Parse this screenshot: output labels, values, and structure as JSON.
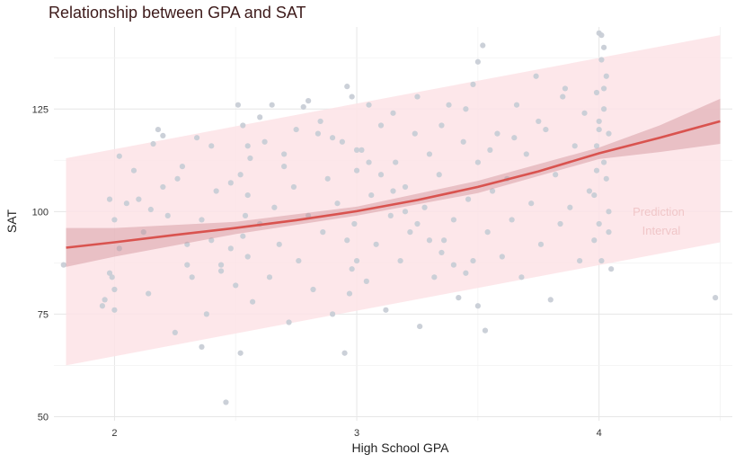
{
  "chart_data": {
    "type": "scatter",
    "title": "Relationship between GPA and SAT",
    "xlabel": "High School GPA",
    "ylabel": "SAT",
    "xlim": [
      1.75,
      4.55
    ],
    "ylim": [
      49,
      145
    ],
    "x_ticks": [
      2,
      3,
      4
    ],
    "y_ticks": [
      50,
      75,
      100,
      125
    ],
    "grid": true,
    "legend": "none",
    "annotation": "Prediction Interval",
    "annotation_lines": [
      "Prediction",
      "Interval"
    ],
    "fit_line": {
      "name": "",
      "x": [
        1.8,
        2.0,
        2.25,
        2.5,
        2.75,
        3.0,
        3.25,
        3.5,
        3.75,
        4.0,
        4.25,
        4.5
      ],
      "y": [
        91.2,
        92.5,
        94.3,
        96.0,
        97.9,
        100.1,
        102.8,
        106.0,
        109.8,
        114.2,
        118.0,
        122.0
      ]
    },
    "confidence_band": {
      "x": [
        1.8,
        2.0,
        2.5,
        3.0,
        3.5,
        4.0,
        4.25,
        4.5
      ],
      "lower": [
        86.5,
        89.0,
        94.5,
        99.0,
        104.5,
        112.8,
        114.5,
        116.5
      ],
      "upper": [
        96.0,
        96.0,
        97.5,
        101.2,
        107.5,
        115.6,
        121.0,
        127.5
      ]
    },
    "prediction_band": {
      "x": [
        1.8,
        4.5
      ],
      "lower": [
        62.5,
        92.5
      ],
      "upper": [
        113.0,
        143.0
      ]
    },
    "points": [
      [
        1.79,
        87
      ],
      [
        1.95,
        77
      ],
      [
        1.96,
        78.5
      ],
      [
        1.98,
        85
      ],
      [
        1.99,
        84
      ],
      [
        2.0,
        76
      ],
      [
        2.0,
        81
      ],
      [
        1.98,
        103
      ],
      [
        2.02,
        113.5
      ],
      [
        2.05,
        102
      ],
      [
        2.08,
        110
      ],
      [
        2.1,
        103
      ],
      [
        2.12,
        95
      ],
      [
        2.14,
        80
      ],
      [
        2.16,
        116.5
      ],
      [
        2.18,
        120
      ],
      [
        2.2,
        106
      ],
      [
        2.22,
        99
      ],
      [
        2.25,
        70.5
      ],
      [
        2.28,
        111
      ],
      [
        2.3,
        92
      ],
      [
        2.32,
        84
      ],
      [
        2.34,
        118
      ],
      [
        2.36,
        98
      ],
      [
        2.38,
        75
      ],
      [
        2.4,
        116
      ],
      [
        2.42,
        105
      ],
      [
        2.44,
        87
      ],
      [
        2.46,
        53.5
      ],
      [
        2.48,
        91
      ],
      [
        2.3,
        87
      ],
      [
        2.36,
        67
      ],
      [
        2.4,
        93
      ],
      [
        2.44,
        85.5
      ],
      [
        2.48,
        107
      ],
      [
        2.26,
        108
      ],
      [
        2.2,
        118.5
      ],
      [
        2.15,
        100.5
      ],
      [
        2.52,
        65.5
      ],
      [
        2.5,
        82
      ],
      [
        2.53,
        94
      ],
      [
        2.54,
        99
      ],
      [
        2.55,
        104
      ],
      [
        2.56,
        113
      ],
      [
        2.53,
        121
      ],
      [
        2.51,
        126
      ],
      [
        2.52,
        109
      ],
      [
        2.55,
        89
      ],
      [
        2.57,
        78
      ],
      [
        2.6,
        97
      ],
      [
        2.62,
        117
      ],
      [
        2.64,
        84
      ],
      [
        2.66,
        101
      ],
      [
        2.68,
        92
      ],
      [
        2.7,
        111
      ],
      [
        2.72,
        73
      ],
      [
        2.74,
        106
      ],
      [
        2.76,
        88
      ],
      [
        2.78,
        125.5
      ],
      [
        2.8,
        99
      ],
      [
        2.82,
        81
      ],
      [
        2.84,
        119
      ],
      [
        2.86,
        95
      ],
      [
        2.88,
        108
      ],
      [
        2.9,
        75
      ],
      [
        2.92,
        102
      ],
      [
        2.94,
        117
      ],
      [
        2.96,
        93
      ],
      [
        2.98,
        86
      ],
      [
        3.0,
        110
      ],
      [
        2.98,
        128
      ],
      [
        2.96,
        130.5
      ],
      [
        2.95,
        65.5
      ],
      [
        3.0,
        88
      ],
      [
        2.97,
        80
      ],
      [
        2.99,
        97
      ],
      [
        3.02,
        115
      ],
      [
        3.04,
        83
      ],
      [
        3.06,
        104
      ],
      [
        3.08,
        92
      ],
      [
        3.1,
        121
      ],
      [
        3.12,
        76
      ],
      [
        3.14,
        99
      ],
      [
        3.16,
        112
      ],
      [
        3.18,
        88
      ],
      [
        3.2,
        106
      ],
      [
        3.22,
        95
      ],
      [
        3.24,
        119
      ],
      [
        3.26,
        72
      ],
      [
        3.28,
        101
      ],
      [
        3.3,
        114
      ],
      [
        3.32,
        84
      ],
      [
        3.34,
        109
      ],
      [
        3.36,
        93
      ],
      [
        3.38,
        126
      ],
      [
        3.4,
        98
      ],
      [
        3.42,
        79
      ],
      [
        3.44,
        117
      ],
      [
        3.46,
        103
      ],
      [
        3.48,
        88
      ],
      [
        3.5,
        112
      ],
      [
        3.48,
        131
      ],
      [
        3.5,
        136.5
      ],
      [
        3.52,
        140.5
      ],
      [
        3.5,
        77
      ],
      [
        3.53,
        71
      ],
      [
        3.54,
        95
      ],
      [
        3.56,
        105
      ],
      [
        3.58,
        119
      ],
      [
        3.6,
        89
      ],
      [
        3.62,
        108
      ],
      [
        3.64,
        98
      ],
      [
        3.66,
        126
      ],
      [
        3.68,
        84
      ],
      [
        3.7,
        114
      ],
      [
        3.72,
        102
      ],
      [
        3.74,
        133
      ],
      [
        3.76,
        92
      ],
      [
        3.78,
        120
      ],
      [
        3.8,
        78.5
      ],
      [
        3.82,
        109
      ],
      [
        3.84,
        97
      ],
      [
        3.86,
        130
      ],
      [
        3.88,
        101
      ],
      [
        3.9,
        116
      ],
      [
        3.92,
        88
      ],
      [
        3.94,
        124
      ],
      [
        3.96,
        105
      ],
      [
        3.98,
        93
      ],
      [
        4.0,
        143.5
      ],
      [
        4.01,
        143
      ],
      [
        4.02,
        140
      ],
      [
        4.01,
        137
      ],
      [
        3.99,
        129
      ],
      [
        4.0,
        120
      ],
      [
        4.02,
        112
      ],
      [
        3.98,
        104
      ],
      [
        4.0,
        97
      ],
      [
        4.01,
        88
      ],
      [
        3.99,
        116
      ],
      [
        4.02,
        125
      ],
      [
        4.03,
        108
      ],
      [
        4.04,
        100
      ],
      [
        4.03,
        133
      ],
      [
        4.04,
        95
      ],
      [
        4.05,
        86
      ],
      [
        4.02,
        130
      ],
      [
        4.0,
        122
      ],
      [
        3.99,
        110
      ],
      [
        4.04,
        119
      ],
      [
        4.48,
        79
      ],
      [
        2.0,
        98
      ],
      [
        2.02,
        91
      ],
      [
        2.55,
        116
      ],
      [
        2.6,
        123
      ],
      [
        2.65,
        126
      ],
      [
        2.7,
        114
      ],
      [
        2.75,
        120
      ],
      [
        2.8,
        127
      ],
      [
        2.85,
        122
      ],
      [
        2.9,
        118
      ],
      [
        3.05,
        126
      ],
      [
        3.15,
        124
      ],
      [
        3.25,
        128
      ],
      [
        3.35,
        121
      ],
      [
        3.45,
        125
      ],
      [
        3.55,
        115
      ],
      [
        3.65,
        118
      ],
      [
        3.75,
        122
      ],
      [
        3.85,
        128
      ],
      [
        3.0,
        115
      ],
      [
        3.05,
        112
      ],
      [
        3.1,
        109
      ],
      [
        3.15,
        105
      ],
      [
        3.2,
        100
      ],
      [
        3.25,
        97
      ],
      [
        3.3,
        93
      ],
      [
        3.35,
        90
      ],
      [
        3.4,
        87
      ],
      [
        3.45,
        85
      ]
    ]
  }
}
